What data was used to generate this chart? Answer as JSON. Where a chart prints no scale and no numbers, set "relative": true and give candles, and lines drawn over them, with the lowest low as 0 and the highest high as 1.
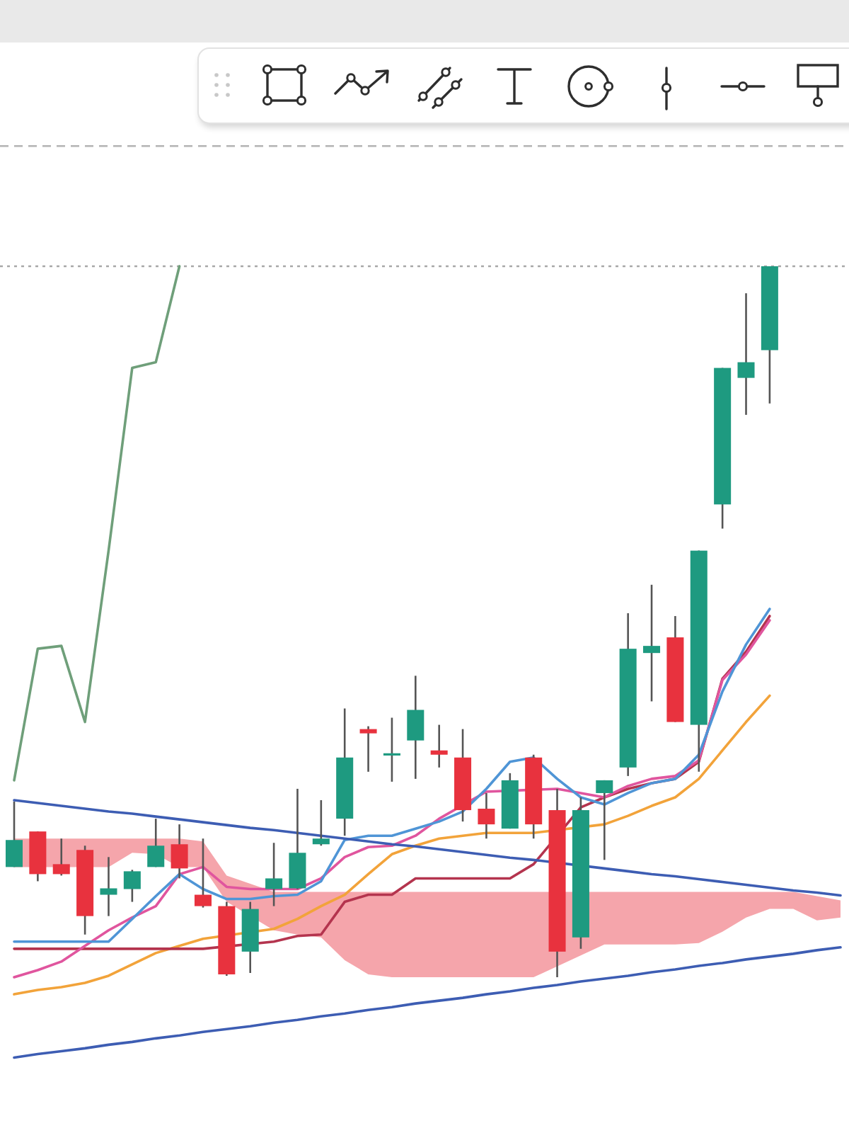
{
  "chart_data": {
    "type": "candlestick",
    "relative": true,
    "categories": [
      null,
      null,
      null,
      null,
      null,
      null,
      null,
      null,
      null,
      null,
      null,
      null,
      null,
      null,
      null,
      null,
      null,
      null,
      null,
      null,
      null,
      null,
      null,
      null,
      null,
      null,
      null,
      null,
      null,
      null,
      null,
      null,
      null,
      null,
      null,
      null
    ],
    "ohlc": [
      [
        0.155,
        0.247,
        0.155,
        0.193
      ],
      [
        0.205,
        0.205,
        0.135,
        0.145
      ],
      [
        0.159,
        0.195,
        0.143,
        0.145
      ],
      [
        0.179,
        0.185,
        0.06,
        0.086
      ],
      [
        0.116,
        0.169,
        0.086,
        0.125
      ],
      [
        0.124,
        0.151,
        0.106,
        0.149
      ],
      [
        0.155,
        0.223,
        0.155,
        0.185
      ],
      [
        0.187,
        0.215,
        0.139,
        0.153
      ],
      [
        0.116,
        0.195,
        0.098,
        0.1
      ],
      [
        0.1,
        0.106,
        0.002,
        0.004
      ],
      [
        0.036,
        0.106,
        0.006,
        0.096
      ],
      [
        0.124,
        0.189,
        0.1,
        0.139
      ],
      [
        0.125,
        0.265,
        0.124,
        0.175
      ],
      [
        0.187,
        0.249,
        0.185,
        0.195
      ],
      [
        0.223,
        0.378,
        0.199,
        0.309
      ],
      [
        0.349,
        0.353,
        0.289,
        0.343
      ],
      [
        0.313,
        0.365,
        0.275,
        0.315
      ],
      [
        0.333,
        0.424,
        0.279,
        0.376
      ],
      [
        0.319,
        0.355,
        0.295,
        0.313
      ],
      [
        0.309,
        0.349,
        0.219,
        0.235
      ],
      [
        0.237,
        0.259,
        0.195,
        0.215
      ],
      [
        0.209,
        0.287,
        0.209,
        0.277
      ],
      [
        0.309,
        0.313,
        0.195,
        0.215
      ],
      [
        0.235,
        0.265,
        0.0,
        0.036
      ],
      [
        0.056,
        0.253,
        0.04,
        0.235
      ],
      [
        0.259,
        0.277,
        0.165,
        0.277
      ],
      [
        0.295,
        0.512,
        0.283,
        0.462
      ],
      [
        0.456,
        0.552,
        0.388,
        0.466
      ],
      [
        0.478,
        0.508,
        0.359,
        0.359
      ],
      [
        0.355,
        0.6,
        0.289,
        0.6
      ],
      [
        0.665,
        0.857,
        0.631,
        0.857
      ],
      [
        0.843,
        0.962,
        0.791,
        0.865
      ],
      [
        0.882,
        1.0,
        0.807,
        1.0
      ],
      null,
      null,
      null
    ],
    "colors": [
      "#1e9a80",
      "#e8323e",
      "#e8323e",
      "#e8323e",
      "#1e9a80",
      "#1e9a80",
      "#1e9a80",
      "#e8323e",
      "#e8323e",
      "#e8323e",
      "#1e9a80",
      "#1e9a80",
      "#1e9a80",
      "#1e9a80",
      "#1e9a80",
      "#e8323e",
      "#1e9a80",
      "#1e9a80",
      "#e8323e",
      "#e8323e",
      "#e8323e",
      "#1e9a80",
      "#e8323e",
      "#e8323e",
      "#1e9a80",
      "#1e9a80",
      "#1e9a80",
      "#1e9a80",
      "#e8323e",
      "#1e9a80",
      "#1e9a80",
      "#1e9a80",
      "#1e9a80",
      null,
      null,
      null
    ],
    "series": [
      {
        "type": "area",
        "color": "#f5a5ab",
        "values": [
          null,
          null,
          null,
          null,
          null,
          null,
          null,
          null,
          null,
          null,
          null,
          null,
          null,
          null,
          null,
          null,
          null,
          null,
          null,
          null,
          null,
          null,
          null,
          null,
          null,
          null,
          null,
          null,
          null,
          null,
          null,
          null,
          null,
          null,
          null,
          null
        ],
        "upper": [
          0.195,
          null,
          0.195,
          null,
          0.195,
          0.195,
          0.195,
          0.195,
          0.191,
          0.143,
          null,
          0.12,
          0.12,
          0.12,
          0.12,
          0.12,
          0.12,
          0.12,
          0.12,
          0.12,
          0.12,
          0.12,
          0.12,
          null,
          null,
          0.12,
          0.12,
          0.12,
          0.12,
          0.12,
          0.12,
          0.12,
          0.12,
          0.12,
          0.114,
          0.108
        ],
        "lower": [
          0.155,
          null,
          0.155,
          null,
          0.155,
          0.175,
          0.173,
          0.155,
          0.155,
          0.106,
          null,
          0.066,
          0.06,
          0.056,
          0.024,
          0.004,
          0.0,
          0.0,
          0.0,
          0.0,
          0.0,
          0.0,
          0.0,
          null,
          null,
          0.046,
          0.046,
          0.046,
          0.046,
          0.048,
          0.064,
          0.084,
          0.096,
          0.096,
          0.08,
          0.084
        ]
      },
      {
        "type": "line",
        "color": "#f2a33a",
        "values": [
          -0.024,
          -0.018,
          -0.014,
          -0.008,
          0.002,
          0.018,
          0.034,
          0.044,
          0.054,
          null,
          null,
          0.068,
          0.082,
          0.1,
          0.116,
          0.145,
          0.173,
          0.185,
          0.195,
          0.199,
          0.203,
          0.203,
          0.203,
          null,
          null,
          0.215,
          0.227,
          0.241,
          0.253,
          0.279,
          0.319,
          0.359,
          0.396,
          null,
          null,
          null
        ]
      },
      {
        "type": "line",
        "color": "#b4344e",
        "values": [
          0.04,
          0.04,
          0.04,
          0.04,
          0.04,
          0.04,
          0.04,
          0.04,
          0.04,
          null,
          null,
          0.05,
          0.058,
          0.06,
          0.106,
          0.116,
          0.116,
          0.139,
          0.139,
          0.139,
          0.139,
          0.139,
          0.159,
          null,
          0.239,
          0.253,
          0.265,
          0.273,
          0.279,
          0.303,
          0.42,
          0.458,
          0.508,
          null,
          null,
          null
        ]
      },
      {
        "type": "line",
        "color": "#e0559e",
        "values": [
          0.0,
          0.01,
          0.022,
          0.044,
          0.066,
          0.084,
          0.1,
          0.145,
          0.155,
          0.127,
          0.124,
          0.124,
          0.124,
          0.139,
          0.169,
          0.183,
          0.185,
          0.199,
          0.223,
          null,
          0.261,
          null,
          null,
          0.265,
          0.259,
          0.253,
          0.269,
          0.279,
          0.283,
          0.305,
          0.418,
          0.454,
          0.502,
          null,
          null,
          null
        ]
      },
      {
        "type": "line",
        "color": "#4f95d6",
        "values": [
          0.05,
          0.05,
          0.05,
          0.05,
          0.05,
          0.082,
          0.114,
          0.145,
          0.124,
          0.11,
          0.11,
          0.114,
          0.116,
          0.135,
          0.193,
          0.199,
          0.199,
          0.209,
          0.219,
          0.233,
          0.265,
          0.303,
          0.309,
          0.279,
          0.253,
          0.243,
          0.259,
          0.273,
          0.279,
          0.313,
          0.402,
          0.468,
          0.518,
          null,
          null,
          null
        ]
      },
      {
        "type": "line",
        "color": "#3d5db3",
        "values": [
          0.249,
          0.245,
          0.241,
          0.237,
          0.233,
          0.23,
          0.226,
          0.222,
          0.218,
          0.214,
          0.21,
          0.207,
          0.203,
          0.199,
          0.195,
          0.191,
          0.187,
          0.184,
          0.18,
          0.176,
          0.172,
          0.168,
          0.165,
          null,
          null,
          0.153,
          0.149,
          0.145,
          0.142,
          0.138,
          0.134,
          0.13,
          0.126,
          0.122,
          0.119,
          0.115
        ]
      },
      {
        "type": "line",
        "color": "#3d5db3",
        "values": [
          -0.113,
          -0.108,
          -0.104,
          -0.1,
          -0.095,
          -0.091,
          -0.086,
          -0.082,
          -0.077,
          -0.073,
          -0.069,
          -0.064,
          -0.06,
          -0.055,
          -0.051,
          -0.046,
          -0.042,
          -0.037,
          -0.033,
          -0.029,
          -0.024,
          -0.02,
          -0.015,
          -0.011,
          -0.006,
          -0.002,
          0.002,
          0.007,
          0.011,
          0.016,
          0.02,
          0.025,
          0.029,
          0.033,
          0.038,
          0.042
        ]
      },
      {
        "type": "line",
        "color": "#6f9f7a",
        "values": [
          0.277,
          0.462,
          0.466,
          0.359,
          0.6,
          0.857,
          0.865,
          1.0,
          null,
          null,
          null,
          null,
          null,
          null,
          null,
          null,
          null,
          null,
          null,
          null,
          null,
          null,
          null,
          null,
          null,
          null,
          null,
          null,
          null,
          null,
          null,
          null,
          null,
          null,
          null,
          null
        ]
      }
    ],
    "ref_lines": [
      {
        "axis": "y",
        "value": 1.169,
        "color": "#b4b4b4",
        "line_style": "dashed"
      },
      {
        "axis": "y",
        "value": 1.0,
        "color": "#a8a8a8",
        "line_style": "dotted"
      }
    ]
  }
}
